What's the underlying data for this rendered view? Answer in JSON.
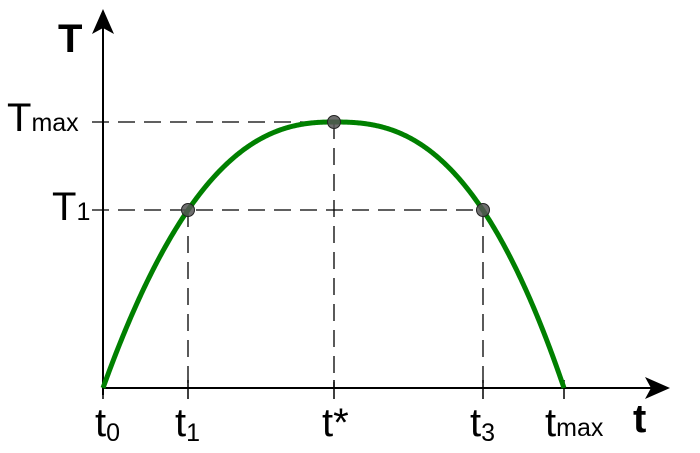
{
  "axes": {
    "y_title": "T",
    "x_title": "t"
  },
  "y_labels": [
    {
      "base": "T",
      "sub": "max"
    },
    {
      "base": "T",
      "sub": "1"
    }
  ],
  "x_labels": [
    {
      "base": "t",
      "sub": "0"
    },
    {
      "base": "t",
      "sub": "1"
    },
    {
      "base": "t*",
      "sub": ""
    },
    {
      "base": "t",
      "sub": "3"
    },
    {
      "base": "t",
      "sub": "max"
    }
  ],
  "colors": {
    "curve": "#008000",
    "point": "#555555",
    "axis": "#000000"
  }
}
